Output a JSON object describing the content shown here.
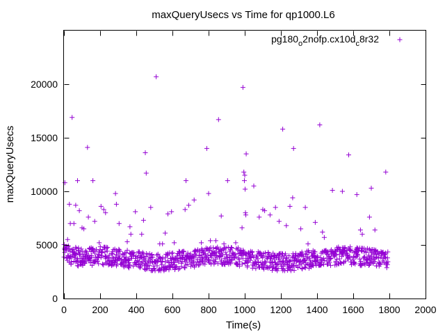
{
  "chart_data": {
    "type": "scatter",
    "title": "maxQueryUsecs vs Time for qp1000.L6",
    "xlabel": "Time(s)",
    "ylabel": "maxQueryUsecs",
    "xlim": [
      0,
      2000
    ],
    "ylim": [
      0,
      25000
    ],
    "xticks": [
      "0",
      "200",
      "400",
      "600",
      "800",
      "1000",
      "1200",
      "1400",
      "1600",
      "1800",
      "2000"
    ],
    "yticks": [
      "0",
      "5000",
      "10000",
      "15000",
      "20000"
    ],
    "grid": false,
    "legend_position": "top-right",
    "marker": "+",
    "series": [
      {
        "name": "pg180_o2nofp.cx10d_c8r32",
        "name_base": "pg180",
        "name_sub1": "o",
        "name_mid": "2nofp.cx10d",
        "name_sub2": "c",
        "name_end": "8r32",
        "color": "#9400d3",
        "outliers": [
          [
            5,
            10800
          ],
          [
            20,
            5500
          ],
          [
            30,
            8800
          ],
          [
            35,
            7000
          ],
          [
            45,
            16900
          ],
          [
            55,
            7000
          ],
          [
            65,
            8700
          ],
          [
            75,
            11000
          ],
          [
            85,
            8200
          ],
          [
            100,
            6600
          ],
          [
            110,
            6500
          ],
          [
            130,
            14100
          ],
          [
            135,
            7600
          ],
          [
            160,
            11000
          ],
          [
            170,
            7200
          ],
          [
            195,
            5200
          ],
          [
            205,
            8600
          ],
          [
            220,
            8300
          ],
          [
            230,
            8000
          ],
          [
            285,
            9800
          ],
          [
            290,
            8800
          ],
          [
            305,
            7000
          ],
          [
            350,
            5300
          ],
          [
            365,
            6700
          ],
          [
            370,
            6000
          ],
          [
            395,
            8100
          ],
          [
            430,
            6000
          ],
          [
            440,
            7300
          ],
          [
            450,
            13600
          ],
          [
            455,
            11700
          ],
          [
            480,
            8500
          ],
          [
            510,
            20700
          ],
          [
            530,
            5100
          ],
          [
            545,
            5100
          ],
          [
            560,
            6100
          ],
          [
            575,
            7900
          ],
          [
            595,
            8100
          ],
          [
            610,
            5200
          ],
          [
            670,
            8300
          ],
          [
            675,
            11000
          ],
          [
            690,
            8700
          ],
          [
            720,
            9200
          ],
          [
            760,
            5200
          ],
          [
            790,
            14000
          ],
          [
            800,
            9800
          ],
          [
            810,
            5400
          ],
          [
            840,
            5400
          ],
          [
            855,
            16700
          ],
          [
            870,
            7700
          ],
          [
            885,
            5100
          ],
          [
            905,
            11000
          ],
          [
            950,
            5200
          ],
          [
            985,
            6600
          ],
          [
            990,
            19700
          ],
          [
            995,
            11800
          ],
          [
            998,
            11000
          ],
          [
            1000,
            11500
          ],
          [
            1002,
            10200
          ],
          [
            1004,
            8000
          ],
          [
            1006,
            7800
          ],
          [
            1008,
            13500
          ],
          [
            1050,
            10500
          ],
          [
            1080,
            7600
          ],
          [
            1100,
            8300
          ],
          [
            1110,
            8200
          ],
          [
            1140,
            7800
          ],
          [
            1170,
            8500
          ],
          [
            1190,
            7200
          ],
          [
            1210,
            15800
          ],
          [
            1230,
            6800
          ],
          [
            1250,
            8600
          ],
          [
            1265,
            9400
          ],
          [
            1270,
            14000
          ],
          [
            1310,
            6500
          ],
          [
            1335,
            8500
          ],
          [
            1350,
            5100
          ],
          [
            1390,
            7100
          ],
          [
            1415,
            16200
          ],
          [
            1430,
            6200
          ],
          [
            1440,
            5700
          ],
          [
            1485,
            10100
          ],
          [
            1540,
            10000
          ],
          [
            1575,
            13400
          ],
          [
            1620,
            9700
          ],
          [
            1640,
            6400
          ],
          [
            1650,
            6000
          ],
          [
            1690,
            7600
          ],
          [
            1700,
            10300
          ],
          [
            1720,
            6400
          ],
          [
            1780,
            11800
          ]
        ]
      }
    ]
  }
}
